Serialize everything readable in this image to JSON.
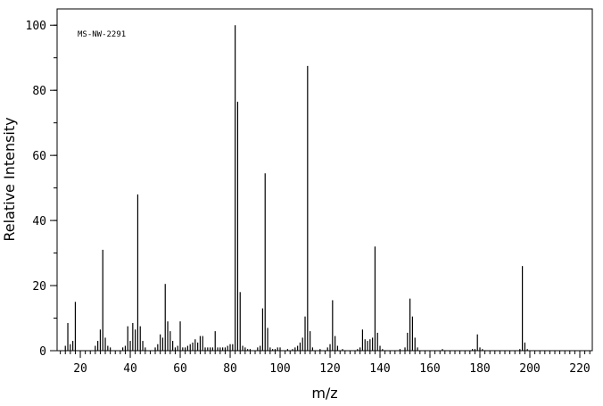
{
  "chart_data": {
    "type": "stem",
    "annotation": "MS-NW-2291",
    "x_label": "m/z",
    "y_label": "Relative Intensity",
    "color": "#000000",
    "xlim": [
      10.7,
      225
    ],
    "ylim": [
      0,
      105
    ],
    "xticks": [
      20,
      40,
      60,
      80,
      100,
      120,
      140,
      160,
      180,
      200,
      220
    ],
    "yticks": [
      0,
      20,
      40,
      60,
      80,
      100
    ],
    "x_minor_step": 2,
    "y_minor_step": 10,
    "x": [
      14,
      15,
      16,
      17,
      18,
      26,
      27,
      28,
      29,
      30,
      31,
      32,
      37,
      38,
      39,
      40,
      41,
      42,
      43,
      44,
      45,
      46,
      50,
      51,
      52,
      53,
      54,
      55,
      56,
      57,
      58,
      59,
      60,
      61,
      62,
      63,
      64,
      65,
      66,
      67,
      68,
      69,
      70,
      71,
      72,
      73,
      74,
      75,
      76,
      77,
      78,
      79,
      80,
      81,
      82,
      83,
      84,
      85,
      86,
      87,
      88,
      91,
      92,
      93,
      94,
      95,
      96,
      97,
      98,
      99,
      100,
      103,
      105,
      106,
      107,
      108,
      109,
      110,
      111,
      112,
      113,
      116,
      119,
      120,
      121,
      122,
      123,
      125,
      131,
      132,
      133,
      134,
      135,
      136,
      137,
      138,
      139,
      140,
      141,
      148,
      150,
      151,
      152,
      153,
      154,
      155,
      165,
      177,
      178,
      179,
      180,
      181,
      196,
      197,
      198,
      199
    ],
    "values": [
      1.5,
      8.5,
      2,
      3,
      15,
      1.5,
      3,
      6.5,
      31,
      4,
      1.5,
      1,
      1,
      1.5,
      7.5,
      3,
      8.5,
      6.5,
      48,
      7.5,
      3,
      1,
      1,
      2,
      5,
      4,
      20.5,
      9,
      6,
      3,
      1,
      1.5,
      9,
      1,
      1,
      1.5,
      2,
      2.5,
      3.5,
      2.5,
      4.5,
      4.5,
      1,
      1,
      1,
      1,
      6,
      1,
      1,
      1,
      1,
      1.5,
      2,
      2,
      100,
      76.5,
      18,
      1.5,
      1,
      0.5,
      0.5,
      1,
      1.5,
      13,
      54.5,
      7,
      1,
      0.5,
      0.5,
      1,
      1,
      0.5,
      0.5,
      1,
      1.5,
      2.5,
      4,
      10.5,
      87.5,
      6,
      1,
      0.5,
      1,
      2,
      15.5,
      4.5,
      1.5,
      0.5,
      0.5,
      1,
      6.5,
      3.5,
      3,
      3.5,
      4,
      32,
      5.5,
      1.5,
      0.5,
      0.5,
      1,
      5.5,
      16,
      10.5,
      4,
      1,
      0.5,
      0.5,
      0.5,
      5,
      1,
      0.5,
      0.5,
      26,
      2.5,
      0.5
    ]
  }
}
